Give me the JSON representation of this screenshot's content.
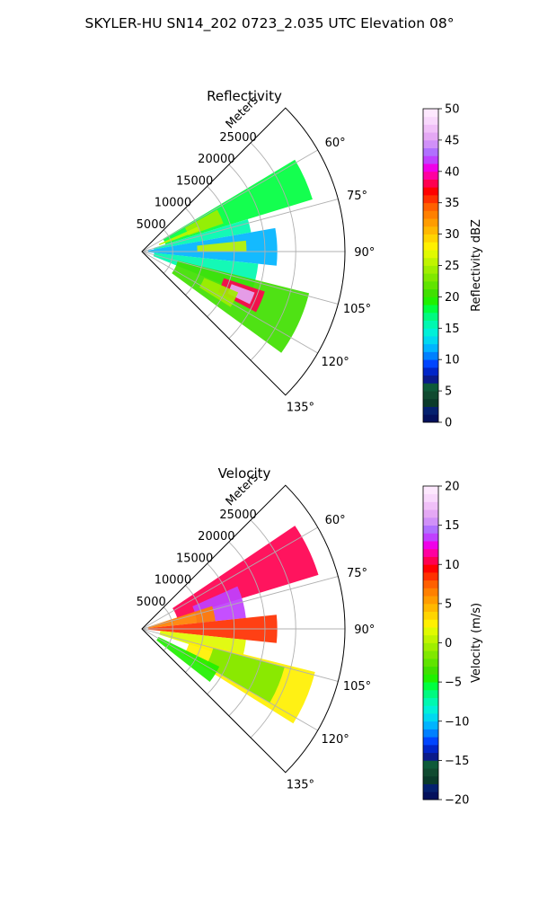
{
  "figure": {
    "suptitle": "SKYLER-HU  SN14_202  0723_2.035 UTC Elevation 08°"
  },
  "chart_data": [
    {
      "type": "polar-sector",
      "title": "Reflectivity",
      "range_label": "Meters",
      "range_ticks": [
        5000,
        10000,
        15000,
        20000,
        25000
      ],
      "range_max": 33000,
      "azimuth_range_deg": [
        45,
        135
      ],
      "azimuth_ticks": [
        "60°",
        "75°",
        "90°",
        "105°",
        "120°",
        "135°"
      ],
      "azimuth_tick_values": [
        60,
        75,
        90,
        105,
        120,
        135
      ],
      "grid": true,
      "colorbar": {
        "label": "Reflectivity dBZ",
        "min": 0,
        "max": 50,
        "ticks": [
          "0",
          "5",
          "10",
          "15",
          "20",
          "25",
          "30",
          "35",
          "40",
          "45",
          "50"
        ],
        "tick_values": [
          0,
          5,
          10,
          15,
          20,
          25,
          30,
          35,
          40,
          45,
          50
        ],
        "colors": [
          "#03105c",
          "#04206e",
          "#0a3a2a",
          "#104a30",
          "#0e5a3a",
          "#0a1a8a",
          "#0025c8",
          "#0045ff",
          "#0080ff",
          "#00b4ff",
          "#00d8f0",
          "#00f0d8",
          "#00f8b0",
          "#00fa80",
          "#00ff40",
          "#20f000",
          "#40e000",
          "#60e400",
          "#80e800",
          "#a0ee00",
          "#c0f400",
          "#e0fa00",
          "#fff000",
          "#ffd400",
          "#ffb800",
          "#ff9c00",
          "#ff8000",
          "#ff6000",
          "#ff3000",
          "#ff0000",
          "#ff0050",
          "#ff00a0",
          "#f000e8",
          "#c040ff",
          "#b070ff",
          "#d090f8",
          "#e4a8f4",
          "#f0c0f8",
          "#f8d8fc",
          "#fde8fe"
        ]
      },
      "echo_regions": [
        {
          "az": [
            59,
            73
          ],
          "range": [
            4000,
            29000
          ],
          "value": 18
        },
        {
          "az": [
            61,
            71
          ],
          "range": [
            8000,
            14000
          ],
          "value": 24
        },
        {
          "az": [
            73,
            80
          ],
          "range": [
            2000,
            18000
          ],
          "value": 16
        },
        {
          "az": [
            66,
            70
          ],
          "range": [
            3000,
            10000
          ],
          "value": 25
        },
        {
          "az": [
            80,
            96
          ],
          "range": [
            1000,
            22000
          ],
          "value": 12
        },
        {
          "az": [
            84,
            90
          ],
          "range": [
            9000,
            17000
          ],
          "value": 26
        },
        {
          "az": [
            96,
            112
          ],
          "range": [
            2000,
            19000
          ],
          "value": 15
        },
        {
          "az": [
            104,
            126
          ],
          "range": [
            6000,
            28000
          ],
          "value": 20
        },
        {
          "az": [
            108,
            118
          ],
          "range": [
            14000,
            21000
          ],
          "value": 38
        },
        {
          "az": [
            110,
            116
          ],
          "range": [
            15500,
            19500
          ],
          "value": 45
        },
        {
          "az": [
            113,
            122
          ],
          "range": [
            11000,
            17000
          ],
          "value": 24
        }
      ]
    },
    {
      "type": "polar-sector",
      "title": "Velocity",
      "range_label": "Meters",
      "range_ticks": [
        5000,
        10000,
        15000,
        20000,
        25000
      ],
      "range_max": 33000,
      "azimuth_range_deg": [
        45,
        135
      ],
      "azimuth_ticks": [
        "60°",
        "75°",
        "90°",
        "105°",
        "120°",
        "135°"
      ],
      "azimuth_tick_values": [
        60,
        75,
        90,
        105,
        120,
        135
      ],
      "grid": true,
      "colorbar": {
        "label": "Velocity (m/s)",
        "min": -20,
        "max": 20,
        "ticks": [
          "−20",
          "−15",
          "−10",
          "−5",
          "0",
          "5",
          "10",
          "15",
          "20"
        ],
        "tick_values": [
          -20,
          -15,
          -10,
          -5,
          0,
          5,
          10,
          15,
          20
        ],
        "colors": [
          "#03105c",
          "#04206e",
          "#0a3a2a",
          "#104a30",
          "#0e5a3a",
          "#0a1a8a",
          "#0025c8",
          "#0045ff",
          "#0080ff",
          "#00b4ff",
          "#00d8f0",
          "#00f0d8",
          "#00f8b0",
          "#00fa80",
          "#00ff40",
          "#20f000",
          "#40e000",
          "#60e400",
          "#80e800",
          "#a0ee00",
          "#c0f400",
          "#e0fa00",
          "#fff000",
          "#ffd400",
          "#ffb800",
          "#ff9c00",
          "#ff8000",
          "#ff6000",
          "#ff3000",
          "#ff0000",
          "#ff0050",
          "#ff00a0",
          "#f000e8",
          "#c040ff",
          "#b070ff",
          "#d090f8",
          "#e4a8f4",
          "#f0c0f8",
          "#f8d8fc",
          "#fde8fe"
        ]
      },
      "echo_regions": [
        {
          "az": [
            56,
            73
          ],
          "range": [
            6000,
            30000
          ],
          "value": 10
        },
        {
          "az": [
            66,
            84
          ],
          "range": [
            9000,
            17000
          ],
          "value": 13
        },
        {
          "az": [
            72,
            84
          ],
          "range": [
            1000,
            12000
          ],
          "value": 6
        },
        {
          "az": [
            84,
            96
          ],
          "range": [
            1000,
            22000
          ],
          "value": 8
        },
        {
          "az": [
            96,
            108
          ],
          "range": [
            3000,
            17000
          ],
          "value": 1
        },
        {
          "az": [
            104,
            122
          ],
          "range": [
            8000,
            29000
          ],
          "value": 2
        },
        {
          "az": [
            105,
            120
          ],
          "range": [
            12000,
            24000
          ],
          "value": -2
        },
        {
          "az": [
            116,
            128
          ],
          "range": [
            3000,
            14000
          ],
          "value": -5
        }
      ]
    }
  ]
}
